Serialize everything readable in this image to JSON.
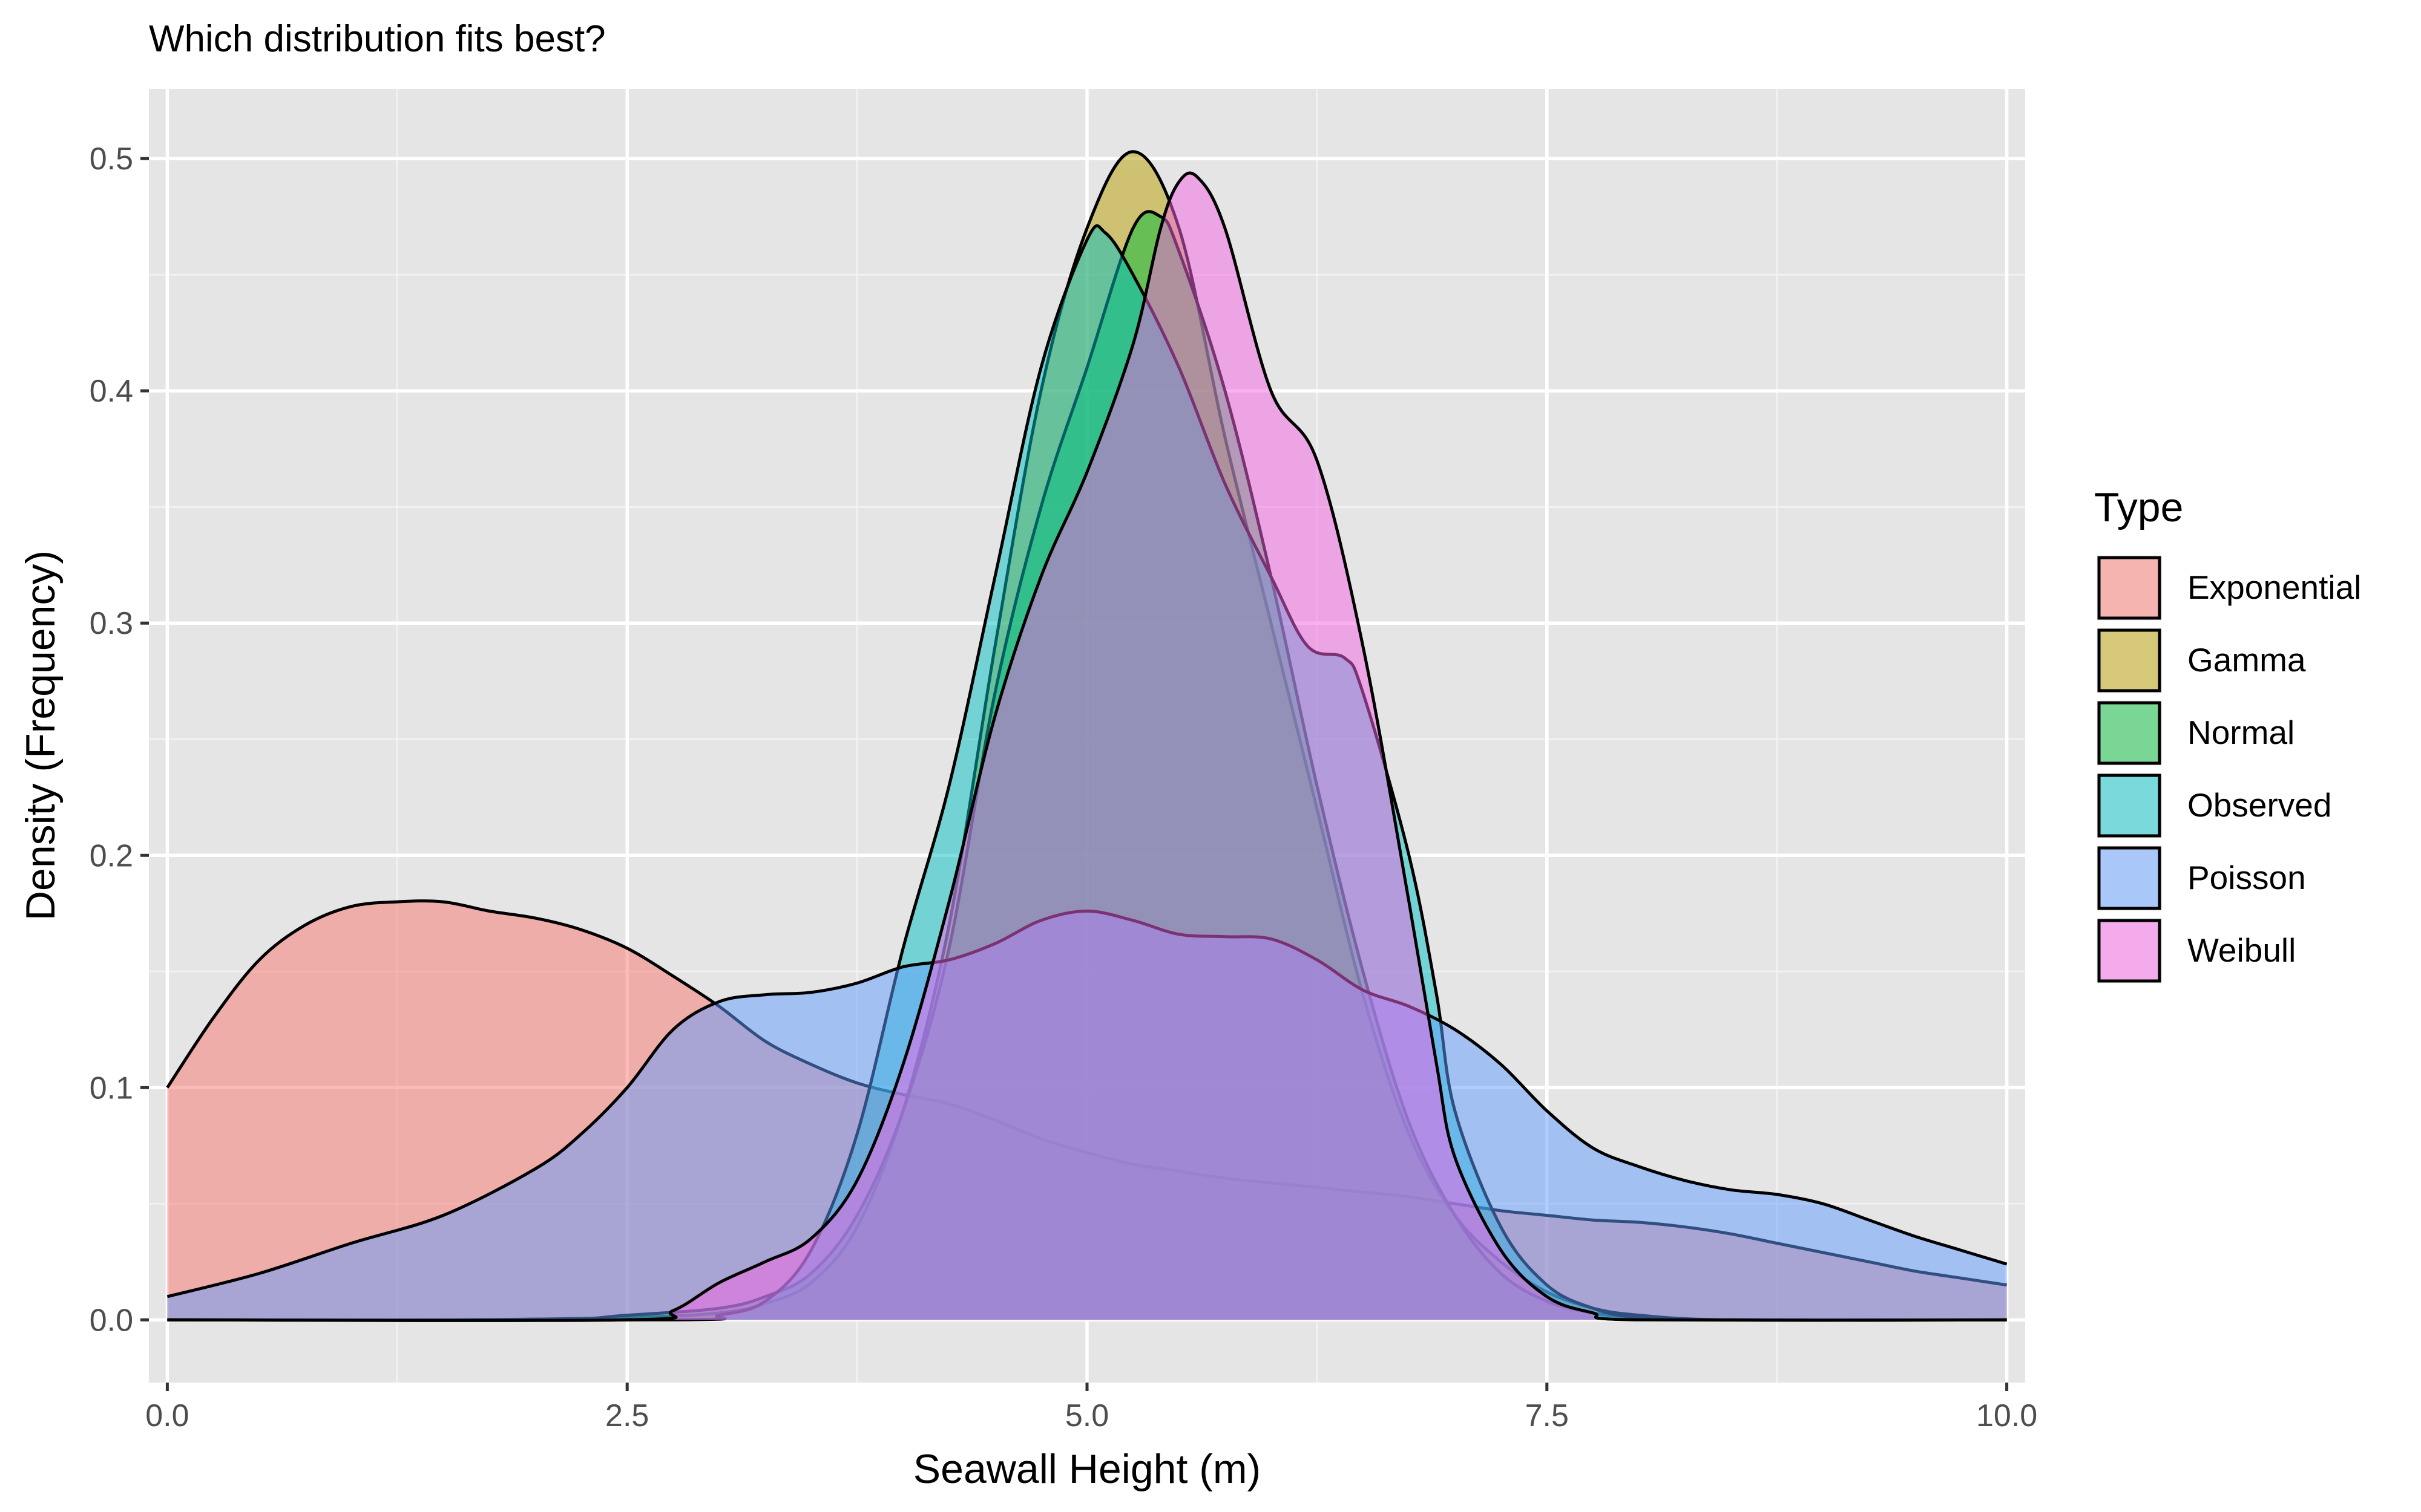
{
  "chart_data": {
    "type": "area",
    "title": "Which distribution fits best?",
    "xlabel": "Seawall Height (m)",
    "ylabel": "Density (Frequency)",
    "xlim": [
      -0.1,
      10.1
    ],
    "ylim": [
      -0.027,
      0.53
    ],
    "x_ticks": [
      {
        "value": 0.0,
        "label": "0.0"
      },
      {
        "value": 2.5,
        "label": "2.5"
      },
      {
        "value": 5.0,
        "label": "5.0"
      },
      {
        "value": 7.5,
        "label": "7.5"
      },
      {
        "value": 10.0,
        "label": "10.0"
      }
    ],
    "y_ticks": [
      {
        "value": 0.0,
        "label": "0.0"
      },
      {
        "value": 0.1,
        "label": "0.1"
      },
      {
        "value": 0.2,
        "label": "0.2"
      },
      {
        "value": 0.3,
        "label": "0.3"
      },
      {
        "value": 0.4,
        "label": "0.4"
      },
      {
        "value": 0.5,
        "label": "0.5"
      }
    ],
    "grid": true,
    "legend": {
      "title": "Type",
      "position": "right"
    },
    "background": "#e5e5e5",
    "fill_opacity": 0.5,
    "series": [
      {
        "name": "Exponential",
        "color": "#f8766d",
        "points": [
          [
            0.0,
            0.1
          ],
          [
            0.25,
            0.13
          ],
          [
            0.5,
            0.155
          ],
          [
            0.75,
            0.17
          ],
          [
            1.0,
            0.178
          ],
          [
            1.25,
            0.18
          ],
          [
            1.5,
            0.18
          ],
          [
            1.75,
            0.176
          ],
          [
            2.0,
            0.173
          ],
          [
            2.25,
            0.168
          ],
          [
            2.5,
            0.16
          ],
          [
            2.75,
            0.148
          ],
          [
            3.0,
            0.135
          ],
          [
            3.25,
            0.12
          ],
          [
            3.5,
            0.11
          ],
          [
            3.75,
            0.102
          ],
          [
            4.0,
            0.097
          ],
          [
            4.25,
            0.093
          ],
          [
            4.5,
            0.086
          ],
          [
            4.75,
            0.078
          ],
          [
            5.0,
            0.072
          ],
          [
            5.25,
            0.067
          ],
          [
            5.5,
            0.064
          ],
          [
            5.75,
            0.061
          ],
          [
            6.0,
            0.059
          ],
          [
            6.25,
            0.057
          ],
          [
            6.5,
            0.055
          ],
          [
            6.75,
            0.053
          ],
          [
            7.0,
            0.05
          ],
          [
            7.25,
            0.047
          ],
          [
            7.5,
            0.045
          ],
          [
            7.75,
            0.043
          ],
          [
            8.0,
            0.042
          ],
          [
            8.25,
            0.04
          ],
          [
            8.5,
            0.037
          ],
          [
            8.75,
            0.033
          ],
          [
            9.0,
            0.029
          ],
          [
            9.25,
            0.025
          ],
          [
            9.5,
            0.021
          ],
          [
            9.75,
            0.018
          ],
          [
            10.0,
            0.015
          ]
        ]
      },
      {
        "name": "Gamma",
        "color": "#b79f00",
        "points": [
          [
            0.0,
            0.0
          ],
          [
            1.5,
            0.0
          ],
          [
            2.5,
            0.001
          ],
          [
            3.0,
            0.003
          ],
          [
            3.25,
            0.007
          ],
          [
            3.5,
            0.016
          ],
          [
            3.75,
            0.04
          ],
          [
            4.0,
            0.09
          ],
          [
            4.25,
            0.17
          ],
          [
            4.5,
            0.29
          ],
          [
            4.75,
            0.4
          ],
          [
            5.0,
            0.47
          ],
          [
            5.25,
            0.503
          ],
          [
            5.5,
            0.47
          ],
          [
            5.75,
            0.38
          ],
          [
            6.0,
            0.3
          ],
          [
            6.25,
            0.22
          ],
          [
            6.5,
            0.14
          ],
          [
            6.75,
            0.08
          ],
          [
            7.0,
            0.045
          ],
          [
            7.25,
            0.025
          ],
          [
            7.5,
            0.012
          ],
          [
            7.75,
            0.005
          ],
          [
            8.0,
            0.002
          ],
          [
            8.5,
            0.0
          ],
          [
            10.0,
            0.0
          ]
        ]
      },
      {
        "name": "Normal",
        "color": "#00ba38",
        "points": [
          [
            0.0,
            0.0
          ],
          [
            2.0,
            0.0
          ],
          [
            2.5,
            0.002
          ],
          [
            3.0,
            0.005
          ],
          [
            3.25,
            0.01
          ],
          [
            3.5,
            0.02
          ],
          [
            3.75,
            0.045
          ],
          [
            4.0,
            0.09
          ],
          [
            4.25,
            0.16
          ],
          [
            4.5,
            0.27
          ],
          [
            4.75,
            0.35
          ],
          [
            5.0,
            0.41
          ],
          [
            5.25,
            0.47
          ],
          [
            5.4,
            0.475
          ],
          [
            5.5,
            0.46
          ],
          [
            5.75,
            0.4
          ],
          [
            6.0,
            0.32
          ],
          [
            6.25,
            0.23
          ],
          [
            6.5,
            0.15
          ],
          [
            6.75,
            0.085
          ],
          [
            7.0,
            0.045
          ],
          [
            7.25,
            0.02
          ],
          [
            7.5,
            0.008
          ],
          [
            7.75,
            0.003
          ],
          [
            8.0,
            0.001
          ],
          [
            8.5,
            0.0
          ],
          [
            10.0,
            0.0
          ]
        ]
      },
      {
        "name": "Observed",
        "color": "#00bfc4",
        "points": [
          [
            0.0,
            0.0
          ],
          [
            2.75,
            0.0
          ],
          [
            3.0,
            0.002
          ],
          [
            3.25,
            0.008
          ],
          [
            3.5,
            0.03
          ],
          [
            3.75,
            0.08
          ],
          [
            4.0,
            0.16
          ],
          [
            4.25,
            0.23
          ],
          [
            4.5,
            0.32
          ],
          [
            4.75,
            0.41
          ],
          [
            5.0,
            0.465
          ],
          [
            5.1,
            0.468
          ],
          [
            5.25,
            0.45
          ],
          [
            5.5,
            0.41
          ],
          [
            5.75,
            0.36
          ],
          [
            6.0,
            0.32
          ],
          [
            6.2,
            0.29
          ],
          [
            6.4,
            0.285
          ],
          [
            6.5,
            0.27
          ],
          [
            6.75,
            0.2
          ],
          [
            6.9,
            0.14
          ],
          [
            7.0,
            0.09
          ],
          [
            7.25,
            0.04
          ],
          [
            7.5,
            0.015
          ],
          [
            7.75,
            0.005
          ],
          [
            8.0,
            0.001
          ],
          [
            8.5,
            0.0
          ],
          [
            10.0,
            0.0
          ]
        ]
      },
      {
        "name": "Poisson",
        "color": "#619cff",
        "points": [
          [
            0.0,
            0.01
          ],
          [
            0.5,
            0.02
          ],
          [
            1.0,
            0.033
          ],
          [
            1.5,
            0.045
          ],
          [
            2.0,
            0.065
          ],
          [
            2.25,
            0.08
          ],
          [
            2.5,
            0.1
          ],
          [
            2.75,
            0.125
          ],
          [
            3.0,
            0.137
          ],
          [
            3.25,
            0.14
          ],
          [
            3.5,
            0.141
          ],
          [
            3.75,
            0.145
          ],
          [
            4.0,
            0.152
          ],
          [
            4.25,
            0.155
          ],
          [
            4.5,
            0.162
          ],
          [
            4.75,
            0.172
          ],
          [
            5.0,
            0.176
          ],
          [
            5.25,
            0.172
          ],
          [
            5.5,
            0.166
          ],
          [
            5.75,
            0.165
          ],
          [
            6.0,
            0.164
          ],
          [
            6.25,
            0.155
          ],
          [
            6.5,
            0.142
          ],
          [
            6.75,
            0.135
          ],
          [
            7.0,
            0.125
          ],
          [
            7.25,
            0.11
          ],
          [
            7.5,
            0.09
          ],
          [
            7.75,
            0.074
          ],
          [
            8.0,
            0.066
          ],
          [
            8.25,
            0.06
          ],
          [
            8.5,
            0.056
          ],
          [
            8.75,
            0.054
          ],
          [
            9.0,
            0.05
          ],
          [
            9.25,
            0.043
          ],
          [
            9.5,
            0.036
          ],
          [
            9.75,
            0.03
          ],
          [
            10.0,
            0.024
          ]
        ]
      },
      {
        "name": "Weibull",
        "color": "#f564e3",
        "points": [
          [
            0.0,
            0.0
          ],
          [
            2.5,
            0.0
          ],
          [
            2.75,
            0.004
          ],
          [
            3.0,
            0.016
          ],
          [
            3.25,
            0.025
          ],
          [
            3.5,
            0.035
          ],
          [
            3.75,
            0.06
          ],
          [
            4.0,
            0.11
          ],
          [
            4.25,
            0.18
          ],
          [
            4.5,
            0.26
          ],
          [
            4.75,
            0.32
          ],
          [
            5.0,
            0.365
          ],
          [
            5.25,
            0.42
          ],
          [
            5.4,
            0.47
          ],
          [
            5.5,
            0.49
          ],
          [
            5.6,
            0.492
          ],
          [
            5.75,
            0.47
          ],
          [
            6.0,
            0.4
          ],
          [
            6.25,
            0.37
          ],
          [
            6.5,
            0.29
          ],
          [
            6.75,
            0.18
          ],
          [
            6.9,
            0.11
          ],
          [
            7.0,
            0.07
          ],
          [
            7.25,
            0.03
          ],
          [
            7.5,
            0.01
          ],
          [
            7.75,
            0.003
          ],
          [
            8.0,
            0.0
          ],
          [
            10.0,
            0.0
          ]
        ]
      }
    ]
  }
}
